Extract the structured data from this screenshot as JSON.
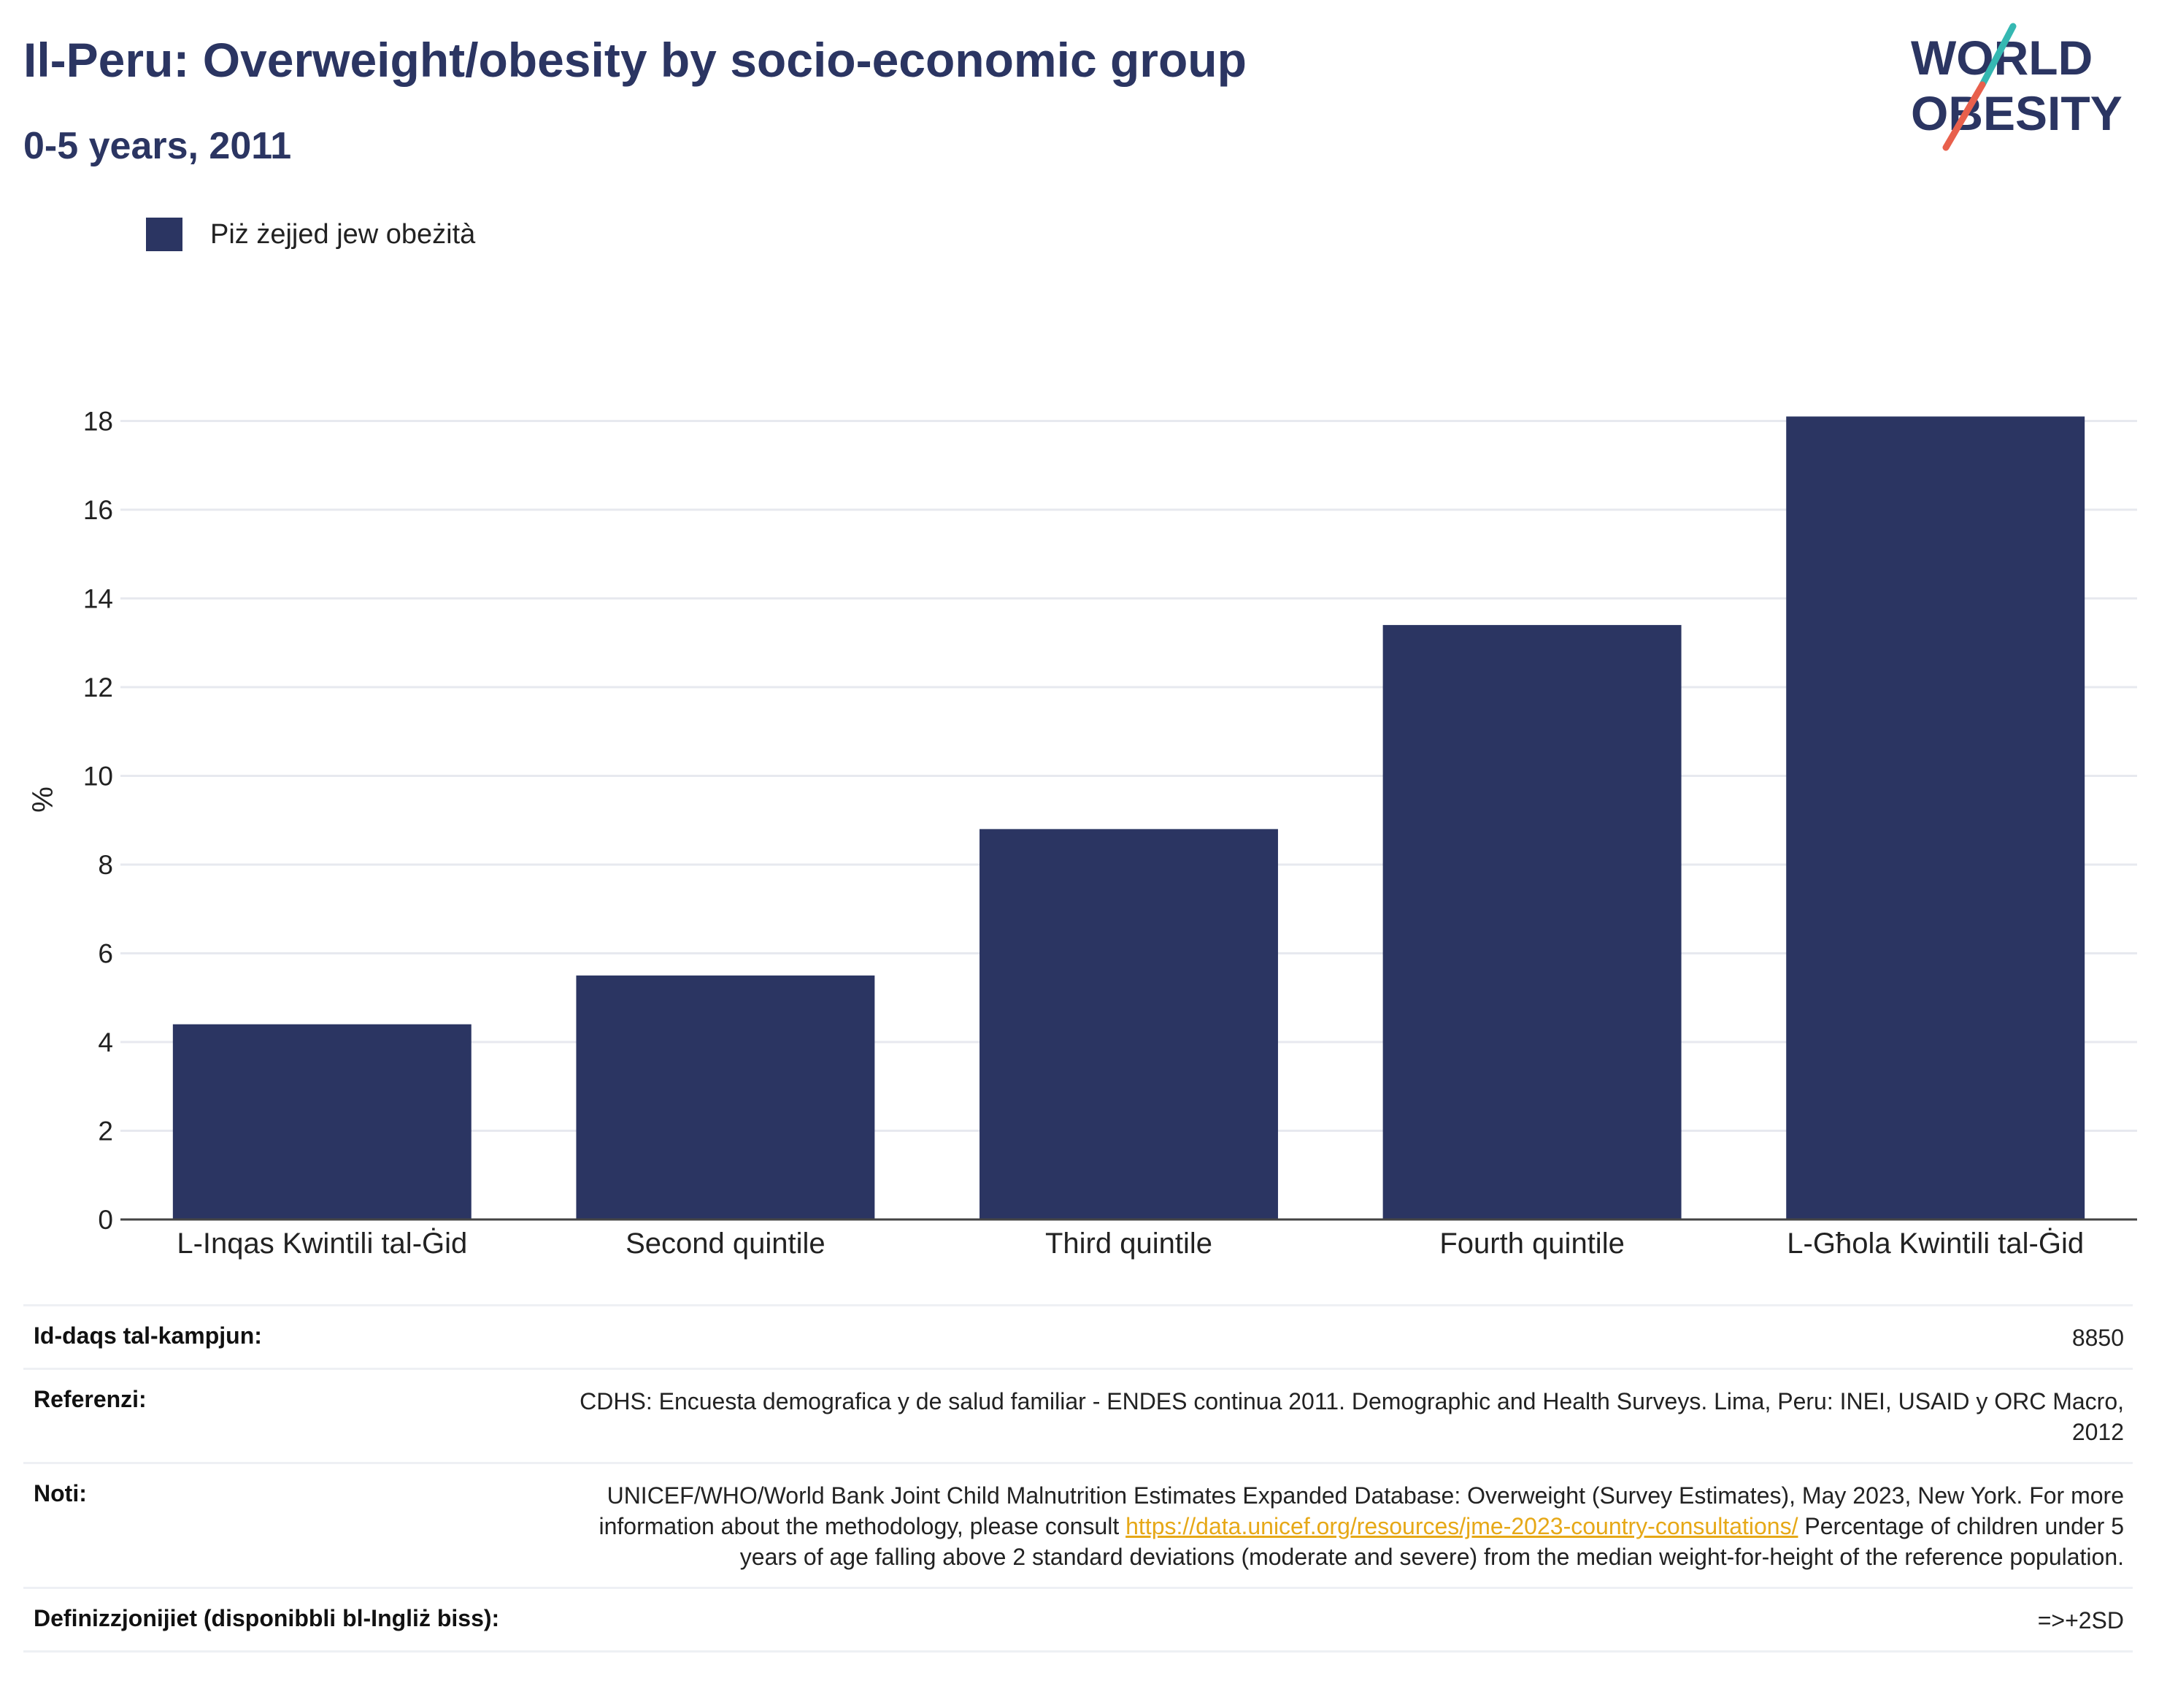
{
  "header": {
    "title": "Il-Peru: Overweight/obesity by socio-economic group",
    "subtitle": "0-5 years, 2011"
  },
  "logo": {
    "line1": "WORLD",
    "line2": "OBESITY",
    "text_color": "#2b3562",
    "slash_colors": [
      "#35b8b2",
      "#e8604c"
    ]
  },
  "legend": {
    "label": "Piż żejjed jew obeżità",
    "color": "#2b3562"
  },
  "chart_data": {
    "type": "bar",
    "categories": [
      "L-Inqas Kwintili tal-Ġid",
      "Second quintile",
      "Third quintile",
      "Fourth quintile",
      "L-Għola Kwintili tal-Ġid"
    ],
    "series": [
      {
        "name": "Piż żejjed jew obeżità",
        "values": [
          4.4,
          5.5,
          8.8,
          13.4,
          18.1
        ],
        "color": "#2b3562"
      }
    ],
    "ylabel": "%",
    "ylim": [
      0,
      18.6
    ],
    "yticks": [
      0,
      2,
      4,
      6,
      8,
      10,
      12,
      14,
      16,
      18
    ],
    "grid": true,
    "legend_position": "top-left"
  },
  "meta": {
    "sample_size": {
      "label": "Id-daqs tal-kampjun:",
      "value": "8850"
    },
    "references": {
      "label": "Referenzi:",
      "value": "CDHS: Encuesta demografica y de salud familiar - ENDES continua 2011. Demographic and Health Surveys. Lima, Peru: INEI, USAID y ORC Macro, 2012"
    },
    "notes": {
      "label": "Noti:",
      "text_before": "UNICEF/WHO/World Bank Joint Child Malnutrition Estimates Expanded Database: Overweight (Survey Estimates), May 2023, New York. For more information about the methodology, please consult ",
      "link": "https://data.unicef.org/resources/jme-2023-country-consultations/",
      "text_after": " Percentage of children under 5 years of age falling above 2 standard deviations (moderate and severe) from the median weight-for-height of the reference population."
    },
    "definitions": {
      "label": "Definizzjonijiet (disponibbli bl-Ingliż biss):",
      "value": "=>+2SD"
    }
  }
}
